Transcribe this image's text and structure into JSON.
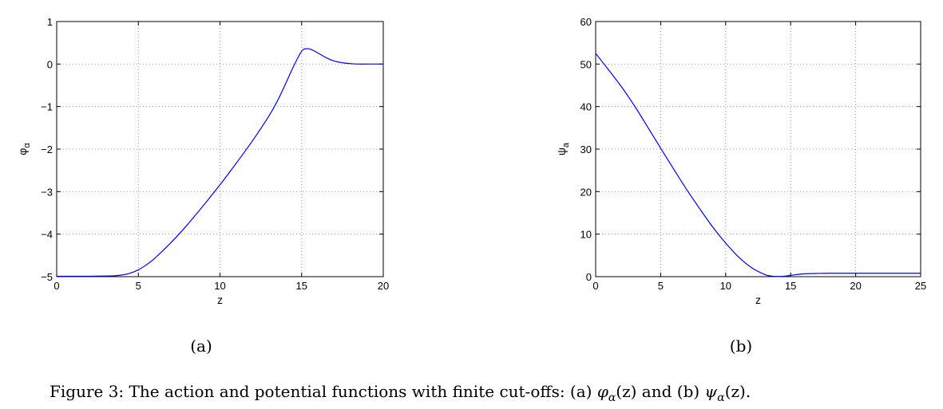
{
  "chart_data": [
    {
      "type": "line",
      "xlabel": "z",
      "ylabel": "φ",
      "ylabel_sub": "α",
      "xlim": [
        0,
        20
      ],
      "ylim": [
        -5,
        1
      ],
      "xticks": [
        0,
        5,
        10,
        15,
        20
      ],
      "yticks": [
        -5,
        -4,
        -3,
        -2,
        -1,
        0,
        1
      ],
      "xtick_labels": [
        "0",
        "5",
        "10",
        "15",
        "20"
      ],
      "ytick_labels": [
        "−5",
        "−4",
        "−3",
        "−2",
        "−1",
        "0",
        "1"
      ],
      "grid": true,
      "line_color": "#0000ff",
      "series": [
        {
          "x": [
            0,
            2,
            3,
            3.5,
            4,
            4.5,
            5,
            5.5,
            6,
            7,
            8,
            9,
            10,
            11,
            12,
            13,
            13.5,
            14,
            14.5,
            15,
            15.3,
            15.6,
            16,
            16.5,
            17,
            17.5,
            18,
            18.5,
            19,
            20
          ],
          "y": [
            -4.99,
            -4.99,
            -4.985,
            -4.98,
            -4.96,
            -4.92,
            -4.84,
            -4.72,
            -4.57,
            -4.2,
            -3.78,
            -3.32,
            -2.84,
            -2.33,
            -1.8,
            -1.22,
            -0.88,
            -0.48,
            -0.06,
            0.3,
            0.36,
            0.34,
            0.26,
            0.15,
            0.07,
            0.03,
            0.01,
            0.0,
            0.0,
            0.0
          ]
        }
      ],
      "sublabel": "(a)"
    },
    {
      "type": "line",
      "xlabel": "z",
      "ylabel": "ψ",
      "ylabel_sub": "a",
      "xlim": [
        0,
        25
      ],
      "ylim": [
        0,
        60
      ],
      "xticks": [
        0,
        5,
        10,
        15,
        20,
        25
      ],
      "yticks": [
        0,
        10,
        20,
        30,
        40,
        50,
        60
      ],
      "xtick_labels": [
        "0",
        "5",
        "10",
        "15",
        "20",
        "25"
      ],
      "ytick_labels": [
        "0",
        "10",
        "20",
        "30",
        "40",
        "50",
        "60"
      ],
      "grid": true,
      "line_color": "#0000ff",
      "series": [
        {
          "x": [
            0,
            1,
            2,
            3,
            4,
            5,
            6,
            7,
            8,
            9,
            10,
            11,
            12,
            13,
            13.5,
            14,
            14.5,
            15,
            15.5,
            16,
            17,
            18,
            20,
            25
          ],
          "y": [
            52.5,
            48.6,
            44.6,
            40.1,
            35.2,
            30.2,
            25.3,
            20.5,
            16.0,
            11.7,
            7.9,
            4.6,
            2.1,
            0.5,
            0.15,
            0.05,
            0.1,
            0.3,
            0.5,
            0.65,
            0.75,
            0.8,
            0.8,
            0.8
          ]
        }
      ],
      "sublabel": "(b)"
    }
  ],
  "caption": {
    "prefix": "Figure 3: The action and potential functions with finite cut-offs: (a) ",
    "func_a": "φ",
    "sub_a": "α",
    "arg_a": "(z)",
    "mid": " and (b) ",
    "func_b": "ψ",
    "sub_b": "α",
    "arg_b": "(z)",
    "end": "."
  }
}
